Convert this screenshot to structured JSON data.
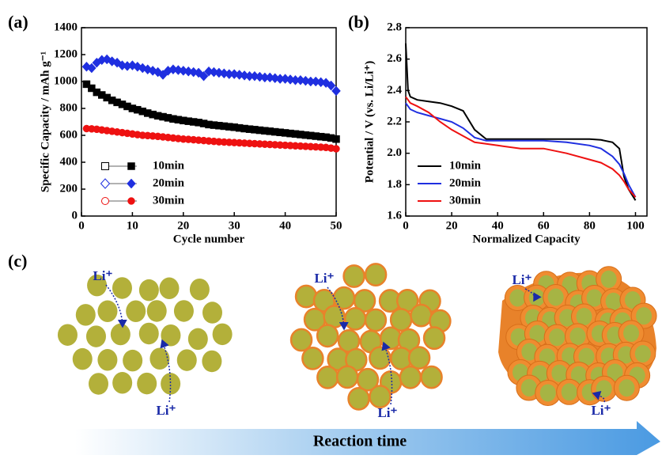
{
  "chart_data": [
    {
      "type": "scatter",
      "label": "(a)",
      "xlabel": "Cycle number",
      "ylabel": "Specific Capacity / mAh g⁻¹",
      "x": [
        1,
        2,
        3,
        4,
        5,
        6,
        7,
        8,
        9,
        10,
        11,
        12,
        13,
        14,
        15,
        16,
        17,
        18,
        19,
        20,
        21,
        22,
        23,
        24,
        25,
        26,
        27,
        28,
        29,
        30,
        31,
        32,
        33,
        34,
        35,
        36,
        37,
        38,
        39,
        40,
        41,
        42,
        43,
        44,
        45,
        46,
        47,
        48,
        49,
        50
      ],
      "series": [
        {
          "name": "10min",
          "color": "#000000",
          "marker": "square",
          "values": [
            980,
            950,
            920,
            900,
            880,
            860,
            845,
            830,
            815,
            800,
            790,
            778,
            765,
            755,
            745,
            738,
            730,
            722,
            716,
            710,
            705,
            700,
            695,
            688,
            680,
            676,
            672,
            668,
            664,
            660,
            655,
            650,
            646,
            642,
            638,
            634,
            630,
            626,
            622,
            618,
            614,
            610,
            606,
            602,
            598,
            594,
            590,
            586,
            580,
            572
          ]
        },
        {
          "name": "20min",
          "color": "#1f2fe0",
          "marker": "diamond",
          "values": [
            1110,
            1100,
            1140,
            1160,
            1165,
            1150,
            1140,
            1120,
            1115,
            1120,
            1110,
            1100,
            1090,
            1080,
            1070,
            1050,
            1080,
            1090,
            1085,
            1080,
            1075,
            1070,
            1065,
            1040,
            1075,
            1070,
            1065,
            1060,
            1055,
            1055,
            1050,
            1045,
            1040,
            1040,
            1035,
            1030,
            1030,
            1025,
            1020,
            1020,
            1015,
            1010,
            1010,
            1005,
            1000,
            1000,
            995,
            990,
            970,
            930
          ]
        },
        {
          "name": "30min",
          "color": "#ee1111",
          "marker": "circle",
          "values": [
            650,
            648,
            645,
            640,
            635,
            630,
            625,
            620,
            615,
            610,
            605,
            600,
            598,
            595,
            592,
            588,
            584,
            580,
            576,
            572,
            570,
            567,
            564,
            561,
            558,
            555,
            552,
            550,
            548,
            546,
            544,
            542,
            540,
            538,
            536,
            534,
            532,
            530,
            528,
            526,
            524,
            522,
            520,
            518,
            516,
            514,
            512,
            510,
            505,
            500
          ]
        }
      ],
      "xlim": [
        0,
        50
      ],
      "ylim": [
        0,
        1400
      ],
      "xticks": [
        0,
        10,
        20,
        30,
        40,
        50
      ],
      "yticks": [
        0,
        200,
        400,
        600,
        800,
        1000,
        1200,
        1400
      ],
      "legend": "lower left"
    },
    {
      "type": "line",
      "label": "(b)",
      "xlabel": "Normalized Capacity",
      "ylabel": "Potential / V (vs. Li/Li⁺)",
      "x": [
        0,
        1,
        2,
        5,
        10,
        15,
        20,
        25,
        30,
        35,
        40,
        50,
        60,
        70,
        80,
        85,
        90,
        93,
        95,
        97,
        100
      ],
      "series": [
        {
          "name": "10min",
          "color": "#000000",
          "values": [
            2.7,
            2.4,
            2.36,
            2.34,
            2.33,
            2.32,
            2.3,
            2.27,
            2.15,
            2.09,
            2.09,
            2.09,
            2.09,
            2.09,
            2.09,
            2.085,
            2.07,
            2.03,
            1.85,
            1.77,
            1.7
          ]
        },
        {
          "name": "20min",
          "color": "#1f2fe0",
          "values": [
            2.32,
            2.3,
            2.28,
            2.26,
            2.24,
            2.22,
            2.2,
            2.16,
            2.1,
            2.08,
            2.08,
            2.08,
            2.08,
            2.07,
            2.05,
            2.03,
            1.98,
            1.93,
            1.87,
            1.8,
            1.72
          ]
        },
        {
          "name": "30min",
          "color": "#ee1111",
          "values": [
            2.36,
            2.34,
            2.32,
            2.3,
            2.26,
            2.2,
            2.15,
            2.11,
            2.07,
            2.06,
            2.05,
            2.03,
            2.03,
            2.0,
            1.96,
            1.94,
            1.9,
            1.86,
            1.82,
            1.77,
            1.72
          ]
        }
      ],
      "xlim": [
        0,
        105
      ],
      "ylim": [
        1.6,
        2.8
      ],
      "xticks": [
        0,
        20,
        40,
        60,
        80,
        100
      ],
      "yticks": [
        1.6,
        1.8,
        {
          "value": 2,
          "label": "2.0"
        },
        2.2,
        2.4,
        2.6,
        2.8
      ],
      "legend": "lower left"
    }
  ],
  "diagram": {
    "label": "(c)",
    "stages": [
      {
        "ions": [
          "Li⁺",
          "Li⁺"
        ]
      },
      {
        "ions": [
          "Li⁺",
          "Li⁺"
        ]
      },
      {
        "ions": [
          "Li⁺",
          "Li⁺"
        ]
      }
    ],
    "arrow": "Reaction time"
  }
}
